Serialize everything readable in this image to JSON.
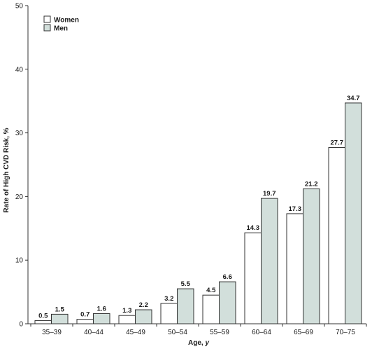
{
  "chart_data": {
    "type": "bar",
    "categories": [
      "35–39",
      "40–44",
      "45–49",
      "50–54",
      "55–59",
      "60–64",
      "65–69",
      "70–75"
    ],
    "series": [
      {
        "name": "Women",
        "values": [
          0.5,
          0.7,
          1.3,
          3.2,
          4.5,
          14.3,
          17.3,
          27.7
        ],
        "color": "#ffffff"
      },
      {
        "name": "Men",
        "values": [
          1.5,
          1.6,
          2.2,
          5.5,
          6.6,
          19.7,
          21.2,
          34.7
        ],
        "color": "#d2dfdb"
      }
    ],
    "data_labels": {
      "Women": [
        "0.5",
        "0.7",
        "1.3",
        "3.2",
        "4.5",
        "14.3",
        "17.3",
        "27.7"
      ],
      "Men": [
        "1.5",
        "1.6",
        "2.2",
        "5.5",
        "6.6",
        "19.7",
        "21.2",
        "34.7"
      ]
    },
    "title": "",
    "xlabel": "Age, y",
    "ylabel": "Rate of High CVD Risk, %",
    "ylim": [
      0,
      50
    ],
    "yticks": [
      0,
      10,
      20,
      30,
      40,
      50
    ],
    "ytick_labels": [
      "0",
      "10",
      "20",
      "30",
      "40",
      "50"
    ],
    "grid": false,
    "legend": {
      "entries": [
        "Women",
        "Men"
      ],
      "position": "top-left"
    }
  }
}
